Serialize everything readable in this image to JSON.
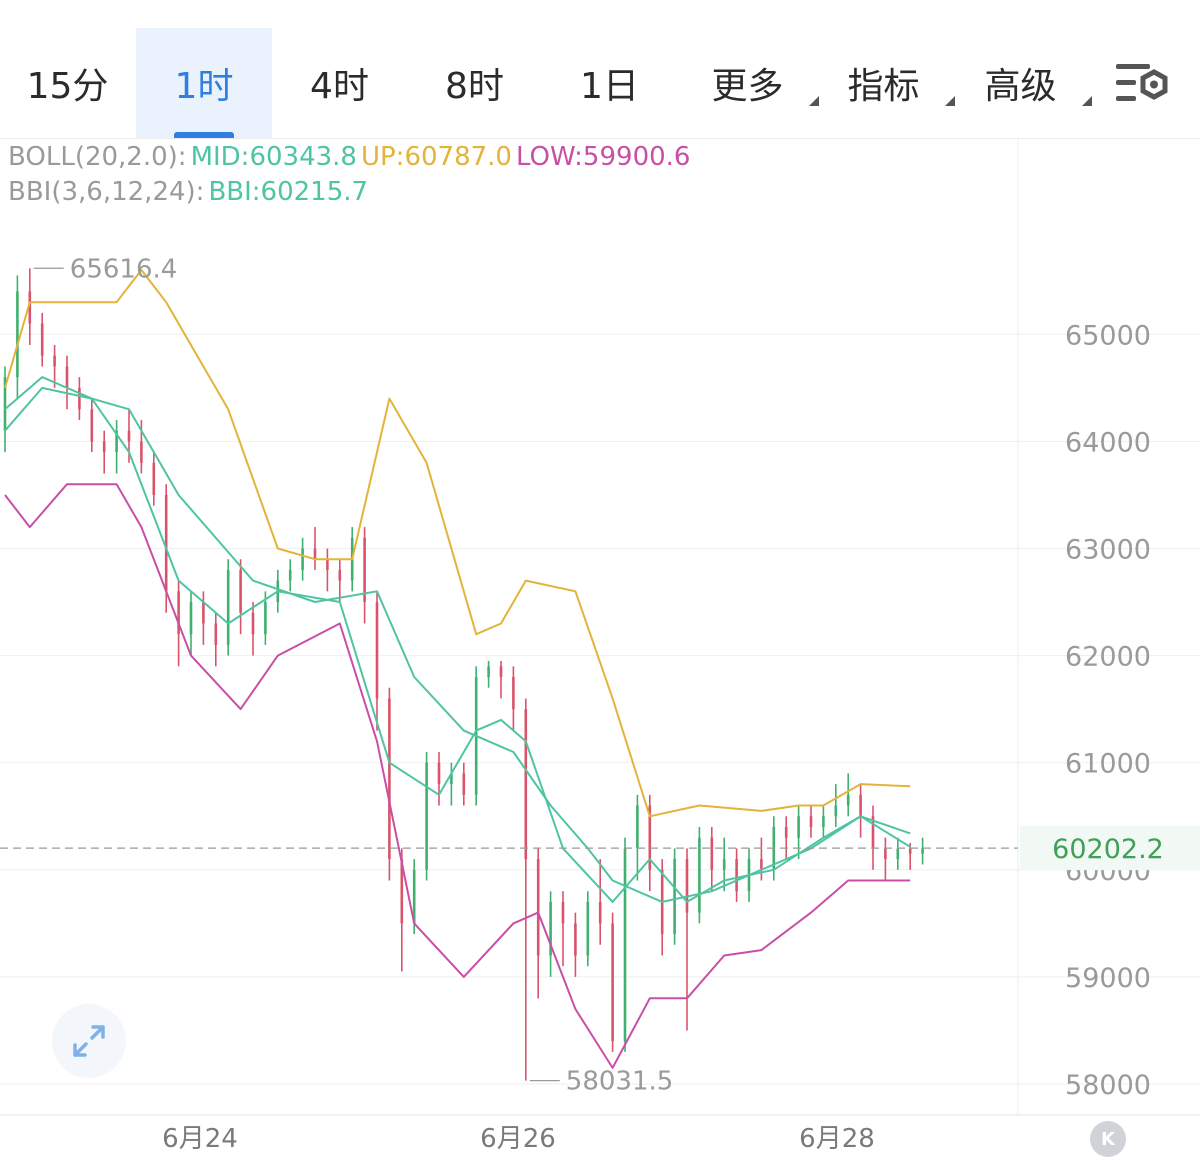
{
  "tabs": [
    {
      "label": "15分",
      "active": false
    },
    {
      "label": "1时",
      "active": true
    },
    {
      "label": "4时",
      "active": false
    },
    {
      "label": "8时",
      "active": false
    },
    {
      "label": "1日",
      "active": false
    },
    {
      "label": "更多",
      "active": false,
      "dropdown": true
    },
    {
      "label": "指标",
      "active": false,
      "dropdown": true
    },
    {
      "label": "高级",
      "active": false,
      "dropdown": true
    }
  ],
  "settings_icon": "chart-settings-icon",
  "legend": {
    "boll_label": "BOLL(20,2.0):",
    "mid": "MID:60343.8",
    "up": "UP:60787.0",
    "low": "LOW:59900.6",
    "bbi_label": "BBI(3,6,12,24):",
    "bbi": "BBI:60215.7"
  },
  "colors": {
    "up_candle": "#3fb06e",
    "down_candle": "#d9546a",
    "boll_mid": "#4fc4a3",
    "boll_up": "#e3b33a",
    "boll_low": "#c94fa6",
    "bbi": "#4fc4a3",
    "label_gray": "#9a9a9a",
    "current_price": "#3fa05a"
  },
  "axis": {
    "y_ticks": [
      "65000",
      "64000",
      "63000",
      "62000",
      "61000",
      "60000",
      "59000",
      "58000"
    ],
    "x_ticks": [
      "6月24",
      "6月26",
      "6月28"
    ],
    "current_price": "60202.2",
    "high_label": "65616.4",
    "low_label": "58031.5"
  },
  "chart_data": {
    "type": "candlestick",
    "ylim": [
      57950,
      65950
    ],
    "candles": [
      [
        64100,
        64600,
        63900,
        64700
      ],
      [
        64600,
        65400,
        64400,
        65550
      ],
      [
        65400,
        65100,
        64900,
        65616.4
      ],
      [
        65100,
        64800,
        64700,
        65200
      ],
      [
        64800,
        64700,
        64500,
        64900
      ],
      [
        64700,
        64500,
        64300,
        64800
      ],
      [
        64500,
        64300,
        64200,
        64600
      ],
      [
        64300,
        64000,
        63900,
        64400
      ],
      [
        64000,
        63900,
        63700,
        64100
      ],
      [
        63900,
        64100,
        63700,
        64200
      ],
      [
        64100,
        64000,
        63800,
        64300
      ],
      [
        64000,
        63800,
        63700,
        64200
      ],
      [
        63800,
        63500,
        63400,
        63900
      ],
      [
        63500,
        62600,
        62400,
        63600
      ],
      [
        62600,
        62200,
        61900,
        62700
      ],
      [
        62200,
        62500,
        62000,
        62600
      ],
      [
        62500,
        62300,
        62100,
        62600
      ],
      [
        62300,
        62100,
        61900,
        62400
      ],
      [
        62100,
        62800,
        62000,
        62900
      ],
      [
        62800,
        62400,
        62200,
        62900
      ],
      [
        62400,
        62200,
        62000,
        62500
      ],
      [
        62200,
        62500,
        62100,
        62600
      ],
      [
        62500,
        62700,
        62400,
        62800
      ],
      [
        62700,
        62800,
        62600,
        62900
      ],
      [
        62800,
        63000,
        62700,
        63100
      ],
      [
        63000,
        62900,
        62800,
        63200
      ],
      [
        62900,
        62800,
        62600,
        63000
      ],
      [
        62800,
        62700,
        62500,
        62900
      ],
      [
        62700,
        63100,
        62600,
        63200
      ],
      [
        63100,
        62500,
        62300,
        63200
      ],
      [
        62500,
        61600,
        61300,
        62600
      ],
      [
        61600,
        60100,
        59900,
        61700
      ],
      [
        60100,
        59500,
        59050,
        60200
      ],
      [
        59500,
        60000,
        59400,
        60100
      ],
      [
        60000,
        61000,
        59900,
        61100
      ],
      [
        61000,
        60800,
        60600,
        61100
      ],
      [
        60800,
        60900,
        60600,
        61000
      ],
      [
        60900,
        60700,
        60600,
        61000
      ],
      [
        60700,
        61800,
        60600,
        61900
      ],
      [
        61800,
        61900,
        61700,
        61950
      ],
      [
        61900,
        61800,
        61600,
        61950
      ],
      [
        61800,
        61500,
        61300,
        61900
      ],
      [
        61500,
        60100,
        58031.5,
        61600
      ],
      [
        60100,
        59200,
        58800,
        60200
      ],
      [
        59200,
        59700,
        59000,
        59800
      ],
      [
        59700,
        59500,
        59100,
        59800
      ],
      [
        59500,
        59200,
        59000,
        59600
      ],
      [
        59200,
        59700,
        59100,
        59800
      ],
      [
        59700,
        59500,
        59300,
        60100
      ],
      [
        59500,
        58400,
        58300,
        59600
      ],
      [
        58400,
        60200,
        58300,
        60300
      ],
      [
        60200,
        60600,
        59900,
        60700
      ],
      [
        60600,
        60000,
        59800,
        60700
      ],
      [
        60000,
        59400,
        59200,
        60100
      ],
      [
        59400,
        60100,
        59300,
        60200
      ],
      [
        60100,
        59600,
        58500,
        60200
      ],
      [
        59600,
        60300,
        59500,
        60400
      ],
      [
        60300,
        60000,
        59800,
        60400
      ],
      [
        60000,
        60100,
        59800,
        60300
      ],
      [
        60100,
        59800,
        59700,
        60200
      ],
      [
        59800,
        60100,
        59700,
        60200
      ],
      [
        60100,
        60000,
        59900,
        60300
      ],
      [
        60000,
        60400,
        59900,
        60500
      ],
      [
        60400,
        60300,
        60100,
        60500
      ],
      [
        60300,
        60500,
        60100,
        60600
      ],
      [
        60500,
        60400,
        60300,
        60600
      ],
      [
        60400,
        60500,
        60300,
        60600
      ],
      [
        60500,
        60600,
        60400,
        60800
      ],
      [
        60600,
        60700,
        60500,
        60900
      ],
      [
        60700,
        60500,
        60300,
        60800
      ],
      [
        60500,
        60200,
        60000,
        60600
      ],
      [
        60200,
        60100,
        59900,
        60300
      ],
      [
        60100,
        60200,
        60000,
        60300
      ],
      [
        60200,
        60150,
        60000,
        60250
      ],
      [
        60150,
        60202.2,
        60050,
        60300
      ]
    ],
    "boll_up": [
      [
        0,
        64500
      ],
      [
        2,
        65300
      ],
      [
        6,
        65300
      ],
      [
        9,
        65300
      ],
      [
        11,
        65600
      ],
      [
        13,
        65300
      ],
      [
        18,
        64300
      ],
      [
        22,
        63000
      ],
      [
        25,
        62900
      ],
      [
        28,
        62900
      ],
      [
        31,
        64400
      ],
      [
        34,
        63800
      ],
      [
        38,
        62200
      ],
      [
        40,
        62300
      ],
      [
        42,
        62700
      ],
      [
        46,
        62600
      ],
      [
        49,
        61600
      ],
      [
        52,
        60500
      ],
      [
        56,
        60600
      ],
      [
        61,
        60550
      ],
      [
        64,
        60600
      ],
      [
        66,
        60600
      ],
      [
        69,
        60800
      ],
      [
        73,
        60780
      ]
    ],
    "boll_mid": [
      [
        0,
        64300
      ],
      [
        3,
        64600
      ],
      [
        7,
        64400
      ],
      [
        10,
        64300
      ],
      [
        14,
        63500
      ],
      [
        20,
        62700
      ],
      [
        25,
        62500
      ],
      [
        30,
        62600
      ],
      [
        33,
        61800
      ],
      [
        37,
        61300
      ],
      [
        41,
        61100
      ],
      [
        44,
        60600
      ],
      [
        47,
        60200
      ],
      [
        49,
        59900
      ],
      [
        53,
        59700
      ],
      [
        57,
        59800
      ],
      [
        61,
        60000
      ],
      [
        65,
        60200
      ],
      [
        69,
        60500
      ],
      [
        73,
        60340
      ]
    ],
    "boll_low": [
      [
        0,
        63500
      ],
      [
        2,
        63200
      ],
      [
        5,
        63600
      ],
      [
        9,
        63600
      ],
      [
        11,
        63200
      ],
      [
        15,
        62000
      ],
      [
        19,
        61500
      ],
      [
        22,
        62000
      ],
      [
        27,
        62300
      ],
      [
        30,
        61200
      ],
      [
        33,
        59500
      ],
      [
        37,
        59000
      ],
      [
        41,
        59500
      ],
      [
        43,
        59600
      ],
      [
        46,
        58700
      ],
      [
        49,
        58150
      ],
      [
        52,
        58800
      ],
      [
        55,
        58800
      ],
      [
        58,
        59200
      ],
      [
        61,
        59250
      ],
      [
        65,
        59600
      ],
      [
        68,
        59900
      ],
      [
        73,
        59900
      ]
    ],
    "bbi": [
      [
        0,
        64100
      ],
      [
        3,
        64500
      ],
      [
        7,
        64400
      ],
      [
        10,
        63900
      ],
      [
        14,
        62700
      ],
      [
        18,
        62300
      ],
      [
        22,
        62600
      ],
      [
        27,
        62500
      ],
      [
        31,
        61000
      ],
      [
        35,
        60700
      ],
      [
        38,
        61300
      ],
      [
        40,
        61400
      ],
      [
        42,
        61200
      ],
      [
        45,
        60200
      ],
      [
        49,
        59700
      ],
      [
        52,
        60100
      ],
      [
        55,
        59700
      ],
      [
        58,
        59900
      ],
      [
        62,
        60000
      ],
      [
        66,
        60300
      ],
      [
        69,
        60500
      ],
      [
        73,
        60215
      ]
    ]
  }
}
